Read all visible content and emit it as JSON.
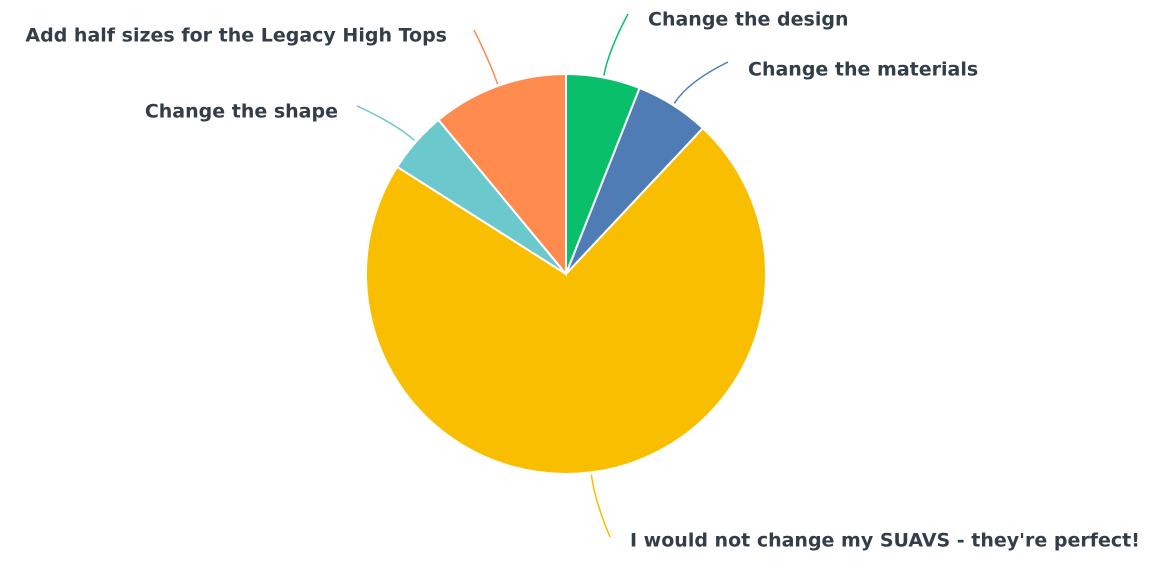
{
  "chart_data": {
    "type": "pie",
    "categories": [
      "Change the design",
      "Change the materials",
      "I would not change my SUAVS - they're perfect!",
      "Change the shape",
      "Add half sizes for the Legacy High Tops"
    ],
    "values": [
      6,
      6,
      72,
      5,
      11
    ],
    "colors": [
      "#0abf6a",
      "#507cb6",
      "#f9be00",
      "#6bc8cd",
      "#ff8b4f"
    ],
    "start_angle": 0,
    "direction": "clockwise"
  }
}
